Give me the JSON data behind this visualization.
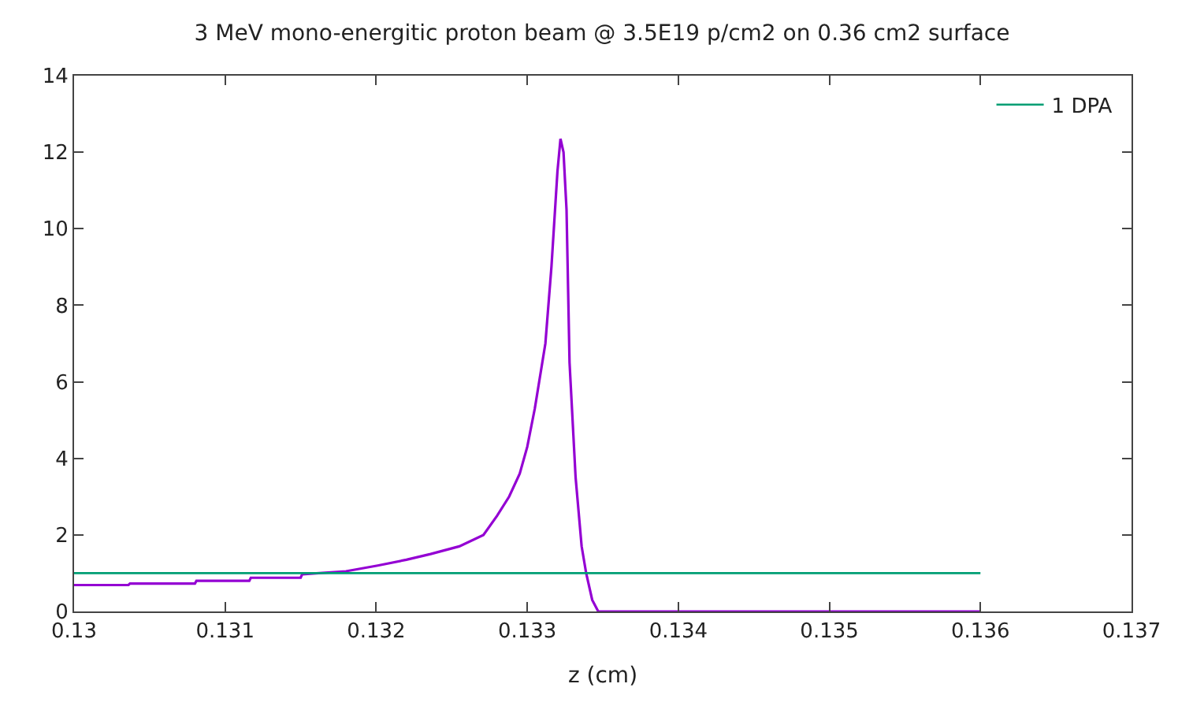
{
  "chart_data": {
    "type": "line",
    "title": "3 MeV mono-energitic proton beam @ 3.5E19 p/cm2 on 0.36 cm2 surface",
    "xlabel": "z (cm)",
    "xlim": [
      0.13,
      0.137
    ],
    "xticks": [
      0.13,
      0.131,
      0.132,
      0.133,
      0.134,
      0.135,
      0.136,
      0.137
    ],
    "ylim": [
      0,
      14
    ],
    "yticks": [
      0,
      2,
      4,
      6,
      8,
      10,
      12,
      14
    ],
    "legend": "top right",
    "marker": "none",
    "line_style": "solid",
    "series": [
      {
        "color": "#9400d3",
        "x": [
          0.13,
          0.13036,
          0.13037,
          0.1308,
          0.13081,
          0.13116,
          0.13117,
          0.1315,
          0.13151,
          0.1318,
          0.13201,
          0.1322,
          0.13236,
          0.13255,
          0.13271,
          0.1328,
          0.13288,
          0.13295,
          0.133,
          0.13305,
          0.13312,
          0.13316,
          0.1332,
          0.13322,
          0.13324,
          0.13326,
          0.13328,
          0.13332,
          0.13336,
          0.13339,
          0.13343,
          0.13347,
          0.136
        ],
        "values": [
          0.69,
          0.69,
          0.73,
          0.73,
          0.8,
          0.8,
          0.88,
          0.88,
          0.97,
          1.05,
          1.2,
          1.35,
          1.5,
          1.7,
          2.0,
          2.5,
          3.0,
          3.6,
          4.3,
          5.3,
          7,
          9,
          11.5,
          12.35,
          12.0,
          10.5,
          6.5,
          3.5,
          1.7,
          1.0,
          0.3,
          0,
          0
        ]
      },
      {
        "name": "1 DPA",
        "color": "#009e73",
        "x": [
          0.13,
          0.136
        ],
        "values": [
          1,
          1
        ]
      }
    ]
  }
}
